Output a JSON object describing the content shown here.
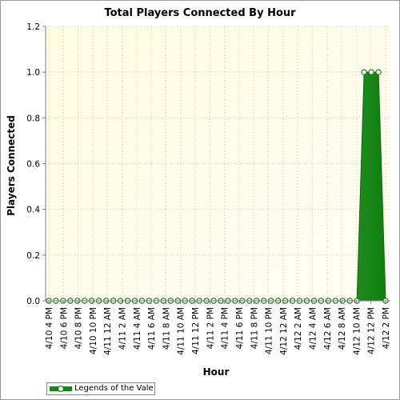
{
  "chart_data": {
    "type": "area",
    "title": "Total Players Connected By Hour",
    "xlabel": "Hour",
    "ylabel": "Players Connected",
    "ylim": [
      0,
      1.2
    ],
    "yticks": [
      "0.0",
      "0.2",
      "0.4",
      "0.6",
      "0.8",
      "1.0",
      "1.2"
    ],
    "grid": true,
    "legend_position": "bottom-left",
    "x_tick_labels": [
      "4/10 4 PM",
      "4/10 6 PM",
      "4/10 8 PM",
      "4/10 10 PM",
      "4/11 12 AM",
      "4/11 2 AM",
      "4/11 4 AM",
      "4/11 6 AM",
      "4/11 8 AM",
      "4/11 10 AM",
      "4/11 12 PM",
      "4/11 2 PM",
      "4/11 4 PM",
      "4/11 6 PM",
      "4/11 8 PM",
      "4/11 10 PM",
      "4/12 12 AM",
      "4/12 2 AM",
      "4/12 4 AM",
      "4/12 6 AM",
      "4/12 8 AM",
      "4/12 10 AM",
      "4/12 12 PM",
      "4/12 2 PM"
    ],
    "series": [
      {
        "name": "Legends of the Vale",
        "color": "#0f8a0f",
        "values": [
          0,
          0,
          0,
          0,
          0,
          0,
          0,
          0,
          0,
          0,
          0,
          0,
          0,
          0,
          0,
          0,
          0,
          0,
          0,
          0,
          0,
          0,
          0,
          0,
          0,
          0,
          0,
          0,
          0,
          0,
          0,
          0,
          0,
          0,
          0,
          0,
          0,
          0,
          0,
          0,
          0,
          0,
          0,
          0,
          1,
          1,
          1,
          0
        ]
      }
    ]
  }
}
